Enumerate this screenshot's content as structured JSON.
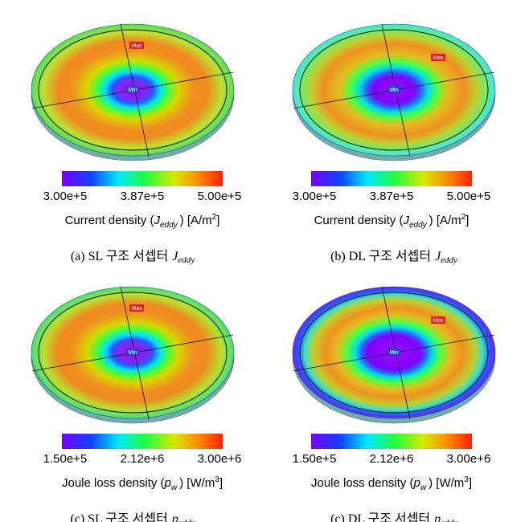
{
  "panels": [
    {
      "max_marker": "Max",
      "min_marker": "Min",
      "colorbar": {
        "min": "3.00e+5",
        "mid": "3.87e+5",
        "max": "5.00e+5"
      },
      "quantity": {
        "name": "Current density (",
        "symbol": "J",
        "subscript": "eddy",
        "unit": ") [A/m",
        "unit_power": "2",
        "unit_end": "]"
      },
      "caption": {
        "prefix": "(a) SL 구조 서셉터",
        "symbol": "J",
        "subscript": "eddy"
      }
    },
    {
      "max_marker": "Max",
      "min_marker": "Min",
      "colorbar": {
        "min": "3.00e+5",
        "mid": "3.87e+5",
        "max": "5.00e+5"
      },
      "quantity": {
        "name": "Current density (",
        "symbol": "J",
        "subscript": "eddy",
        "unit": ") [A/m",
        "unit_power": "2",
        "unit_end": "]"
      },
      "caption": {
        "prefix": "(b) DL 구조 서셉터",
        "symbol": "J",
        "subscript": "eddy"
      }
    },
    {
      "max_marker": "Max",
      "min_marker": "Min",
      "colorbar": {
        "min": "1.50e+5",
        "mid": "2.12e+6",
        "max": "3.00e+6"
      },
      "quantity": {
        "name": "Joule loss density (",
        "symbol": "p",
        "subscript": "w",
        "unit": ") [W/m",
        "unit_power": "3",
        "unit_end": "]"
      },
      "caption": {
        "prefix": "(c) SL 구조 서셉터",
        "symbol": "p",
        "subscript": "eddy"
      }
    },
    {
      "max_marker": "Max",
      "min_marker": "Min",
      "colorbar": {
        "min": "1.50e+5",
        "mid": "2.12e+6",
        "max": "3.00e+6"
      },
      "quantity": {
        "name": "Joule loss density (",
        "symbol": "p",
        "subscript": "w",
        "unit": ") [W/m",
        "unit_power": "3",
        "unit_end": "]"
      },
      "caption": {
        "prefix": "(c) DL 구조 서셉터",
        "symbol": "p",
        "subscript": "eddy"
      }
    }
  ]
}
